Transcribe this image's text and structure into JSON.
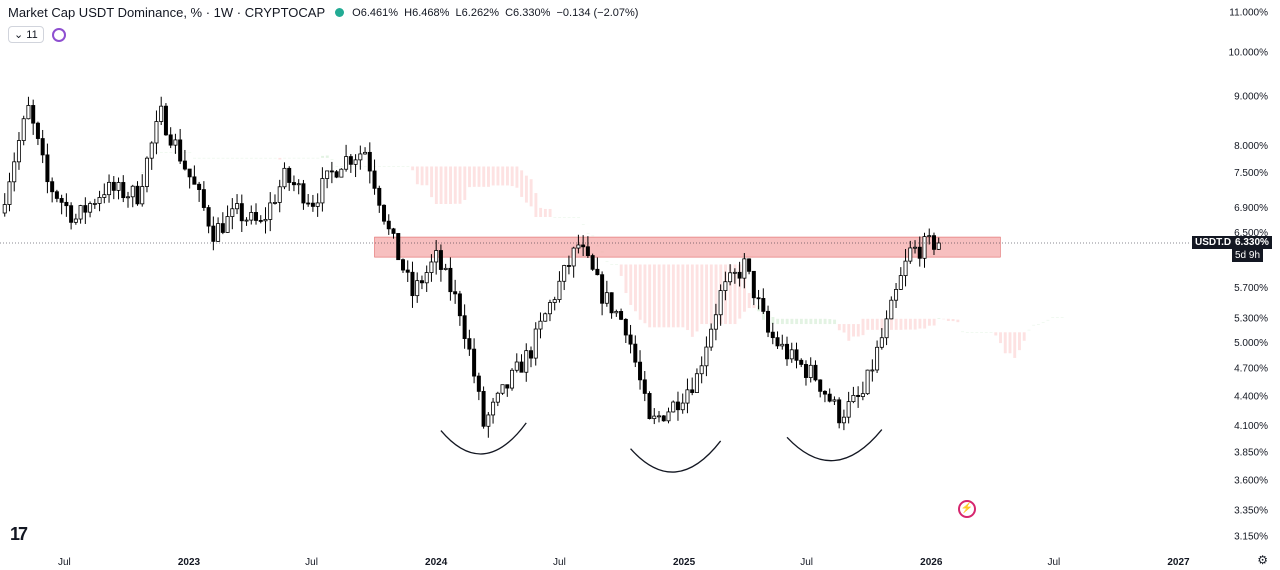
{
  "header": {
    "title": "Market Cap USDT Dominance, % · 1W · CRYPTOCAP",
    "open": "O6.461%",
    "high": "H6.468%",
    "low": "L6.262%",
    "close": "C6.330%",
    "change": "−0.134 (−2.07%)",
    "indicator_count": "⌄ 11"
  },
  "symbol_tag": "USDT.D",
  "price_tag": "6.330%",
  "countdown": "5d 9h",
  "colors": {
    "up_candle": "#ffffff",
    "down_candle": "#000000",
    "cloud_bull": "#e3f3e3",
    "cloud_bear": "#fde2e2",
    "resistance_zone": "#f08a8a",
    "pattern_arcs": "#131722"
  },
  "chart_data": {
    "type": "candlestick",
    "interval": "1W",
    "y_scale": "log",
    "ylim": [
      3.1,
      11.2
    ],
    "y_ticks": [
      "11.000%",
      "10.000%",
      "9.000%",
      "8.000%",
      "7.500%",
      "6.900%",
      "6.500%",
      "5.700%",
      "5.300%",
      "5.000%",
      "4.700%",
      "4.400%",
      "4.100%",
      "3.850%",
      "3.600%",
      "3.350%",
      "3.150%"
    ],
    "y_tick_values": [
      11.0,
      10.0,
      9.0,
      8.0,
      7.5,
      6.9,
      6.5,
      5.7,
      5.3,
      5.0,
      4.7,
      4.4,
      4.1,
      3.85,
      3.6,
      3.35,
      3.15
    ],
    "x_ticks": [
      {
        "label": "Jul",
        "date": "2022-07-01"
      },
      {
        "label": "2023",
        "date": "2023-01-01"
      },
      {
        "label": "Jul",
        "date": "2023-07-01"
      },
      {
        "label": "2024",
        "date": "2024-01-01"
      },
      {
        "label": "Jul",
        "date": "2024-07-01"
      },
      {
        "label": "2025",
        "date": "2025-01-01"
      },
      {
        "label": "Jul",
        "date": "2025-07-01"
      },
      {
        "label": "2026",
        "date": "2026-01-01"
      },
      {
        "label": "Jul",
        "date": "2026-07-01"
      },
      {
        "label": "2027",
        "date": "2027-01-01"
      }
    ],
    "last_price": 6.33,
    "resistance_zone": {
      "from": "2023-10-02",
      "to": "2026-04-13",
      "low": 6.12,
      "high": 6.42
    },
    "trend_segments": [
      [
        "2022-04-04",
        6.8
      ],
      [
        "2022-05-16",
        8.7
      ],
      [
        "2022-06-13",
        7.3
      ],
      [
        "2022-07-25",
        6.7
      ],
      [
        "2022-09-05",
        7.2
      ],
      [
        "2022-10-24",
        7.1
      ],
      [
        "2022-11-28",
        8.6
      ],
      [
        "2023-01-02",
        7.6
      ],
      [
        "2023-02-13",
        6.5
      ],
      [
        "2023-03-20",
        6.8
      ],
      [
        "2023-04-24",
        6.6
      ],
      [
        "2023-05-29",
        7.4
      ],
      [
        "2023-07-10",
        7.0
      ],
      [
        "2023-08-21",
        7.7
      ],
      [
        "2023-09-25",
        7.9
      ],
      [
        "2023-10-30",
        6.5
      ],
      [
        "2023-12-04",
        5.6
      ],
      [
        "2024-01-08",
        6.1
      ],
      [
        "2024-02-12",
        5.4
      ],
      [
        "2024-03-18",
        4.1
      ],
      [
        "2024-04-22",
        4.5
      ],
      [
        "2024-05-27",
        4.9
      ],
      [
        "2024-07-01",
        5.6
      ],
      [
        "2024-08-05",
        6.3
      ],
      [
        "2024-09-09",
        5.6
      ],
      [
        "2024-10-14",
        5.2
      ],
      [
        "2024-11-18",
        4.1
      ],
      [
        "2024-12-23",
        4.3
      ],
      [
        "2025-01-27",
        4.6
      ],
      [
        "2025-03-03",
        5.6
      ],
      [
        "2025-04-07",
        6.0
      ],
      [
        "2025-05-12",
        5.1
      ],
      [
        "2025-06-16",
        4.8
      ],
      [
        "2025-07-21",
        4.6
      ],
      [
        "2025-08-25",
        4.2
      ],
      [
        "2025-09-29",
        4.4
      ],
      [
        "2025-11-03",
        5.2
      ],
      [
        "2025-12-08",
        6.2
      ],
      [
        "2026-01-12",
        6.33
      ]
    ],
    "pattern_arcs": [
      {
        "from": "2024-01-08",
        "to": "2024-05-13",
        "bottom": 3.78
      },
      {
        "from": "2024-10-14",
        "to": "2025-02-24",
        "bottom": 3.62
      },
      {
        "from": "2025-06-02",
        "to": "2025-10-20",
        "bottom": 3.72
      }
    ]
  }
}
